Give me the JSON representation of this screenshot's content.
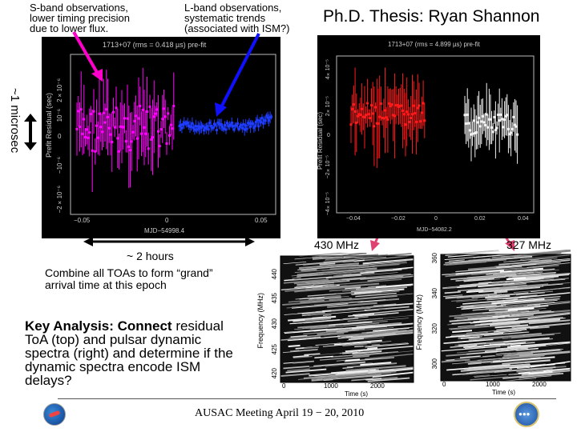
{
  "annotations": {
    "sband": "S-band observations, lower timing precision due to lower flux.",
    "sband_lines": [
      "S-band observations,",
      "lower timing precision",
      "due to lower flux."
    ],
    "lband_lines": [
      "L-band observations,",
      "systematic trends",
      "(associated with ISM?)"
    ],
    "title": "Ph.D. Thesis: Ryan Shannon",
    "micro": "~1 microsec",
    "hours": "~ 2 hours",
    "combine_lines": [
      "Combine all TOAs to form “grand”",
      "arrival time at this epoch"
    ],
    "f430": "430 MHz",
    "f327": "327 MHz",
    "key_bold": "Key Analysis:  Connect",
    "key_rest_lines": [
      " residual",
      "ToA (top) and pulsar dynamic",
      "spectra (right) and determine if the",
      "dynamic spectra encode ISM",
      "delays?"
    ],
    "footer": "AUSAC Meeting April 19 − 20, 2010"
  },
  "left_plot": {
    "title": "1713+07 (rms = 0.418 µs) pre-fit",
    "ylabel": "Prefit Residual (sec)",
    "yticks": [
      "2×10⁻⁶",
      "10⁻⁶",
      "0",
      "−10⁻⁶",
      "−2×10⁻⁶"
    ],
    "xticks": [
      "−0.05",
      "0",
      "0.05"
    ],
    "xlabel": "MJD−54998.4"
  },
  "right_plot": {
    "title": "1713+07 (rms = 4.899 µs) pre-fit",
    "ylabel": "Prefit Residual (sec)",
    "yticks": [
      "4×10⁻⁵",
      "2×10⁻⁵",
      "0",
      "−2×10⁻⁵",
      "−4×10⁻⁵"
    ],
    "xticks": [
      "−0.04",
      "−0.02",
      "0",
      "0.02",
      "0.04"
    ],
    "xlabel": "MJD−54082.2"
  },
  "spec430": {
    "ylabel": "Frequency (MHz)",
    "yticks": [
      "440",
      "435",
      "430",
      "425",
      "420"
    ],
    "xticks": [
      "0",
      "1000",
      "2000"
    ],
    "xlabel": "Time (s)"
  },
  "spec327": {
    "ylabel": "Frequency (MHz)",
    "yticks": [
      "360",
      "340",
      "320",
      "300"
    ],
    "xticks": [
      "0",
      "1000",
      "2000"
    ],
    "xlabel": "Time (s)"
  },
  "colors": {
    "magenta": "#ff00ff",
    "blue": "#1f3dff",
    "red": "#ff1a1a",
    "white_points": "#f2f2f2",
    "arrow_pink": "#ff00cc",
    "arrow_blue": "#1010ff"
  }
}
